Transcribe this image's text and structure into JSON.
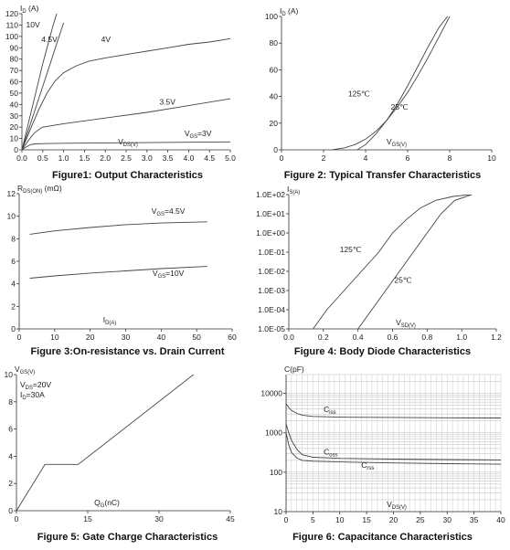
{
  "chart_data": [
    {
      "type": "line",
      "title": "Figure1: Output Characteristics",
      "ylabel": "ID (A)",
      "xlabel": "VDS(V)",
      "xlim": [
        0,
        5
      ],
      "ylim": [
        0,
        120
      ],
      "xticks": [
        "0.0",
        "0.5",
        "1.0",
        "1.5",
        "2.0",
        "2.5",
        "3.0",
        "3.5",
        "4.0",
        "4.5",
        "5.0"
      ],
      "yticks": [
        "0",
        "10",
        "20",
        "30",
        "40",
        "50",
        "60",
        "70",
        "80",
        "90",
        "100",
        "110",
        "120"
      ],
      "grid": false,
      "series": [
        {
          "name": "10V",
          "x": [
            0,
            0.25,
            0.5,
            0.75,
            1.0
          ],
          "y": [
            0,
            38,
            76,
            110,
            140
          ]
        },
        {
          "name": "4.5V",
          "x": [
            0,
            0.25,
            0.5,
            0.75,
            1.0
          ],
          "y": [
            0,
            28,
            56,
            84,
            112
          ]
        },
        {
          "name": "4V",
          "x": [
            0,
            0.2,
            0.4,
            0.6,
            0.8,
            1.0,
            1.3,
            1.6,
            2.0,
            2.5,
            3.0,
            3.5,
            4.0,
            4.5,
            5.0
          ],
          "y": [
            0,
            18,
            35,
            50,
            61,
            68,
            74,
            78,
            81,
            84,
            87,
            90,
            93,
            95,
            98
          ]
        },
        {
          "name": "3.5V",
          "x": [
            0,
            0.15,
            0.3,
            0.45,
            0.5,
            1.0,
            2.0,
            3.0,
            4.0,
            5.0
          ],
          "y": [
            0,
            8,
            15,
            19,
            20,
            23,
            28,
            33,
            39,
            45
          ]
        },
        {
          "name": "VGS=3V",
          "x": [
            0,
            0.1,
            0.2,
            0.3,
            0.5,
            1.0,
            2.0,
            3.0,
            4.0,
            5.0
          ],
          "y": [
            0,
            2.5,
            4.5,
            5.2,
            5.5,
            5.8,
            6.1,
            6.4,
            6.7,
            7
          ]
        }
      ]
    },
    {
      "type": "line",
      "title": "Figure 2: Typical Transfer Characteristics",
      "ylabel": "ID (A)",
      "xlabel": "VGS(V)",
      "xlim": [
        0,
        10
      ],
      "ylim": [
        0,
        100
      ],
      "xticks": [
        "0",
        "2",
        "4",
        "6",
        "8",
        "10"
      ],
      "yticks": [
        "0",
        "20",
        "40",
        "60",
        "80",
        "100"
      ],
      "grid": false,
      "series": [
        {
          "name": "125℃",
          "x": [
            2.4,
            3.0,
            3.5,
            4.0,
            4.5,
            5.0,
            5.5,
            6.0,
            6.5,
            7.0,
            7.5,
            8.0
          ],
          "y": [
            0,
            1.5,
            4,
            8,
            14,
            22,
            32,
            43,
            56,
            70,
            85,
            100
          ]
        },
        {
          "name": "25℃",
          "x": [
            3.6,
            4.0,
            4.5,
            5.0,
            5.5,
            6.0,
            6.5,
            7.0,
            7.5,
            7.9
          ],
          "y": [
            0,
            4,
            12,
            22,
            34,
            48,
            63,
            78,
            92,
            100
          ]
        }
      ]
    },
    {
      "type": "line",
      "title": "Figure 3:On-resistance vs. Drain Current",
      "ylabel": "RDS(ON) (mΩ)",
      "xlabel": "ID(A)",
      "xlim": [
        0,
        60
      ],
      "ylim": [
        0,
        12
      ],
      "xticks": [
        "0",
        "10",
        "20",
        "30",
        "40",
        "50",
        "60"
      ],
      "yticks": [
        "0",
        "2",
        "4",
        "6",
        "8",
        "10",
        "12"
      ],
      "grid": false,
      "series": [
        {
          "name": "VGS=4.5V",
          "x": [
            3,
            10,
            20,
            30,
            40,
            53
          ],
          "y": [
            8.4,
            8.7,
            9.0,
            9.25,
            9.4,
            9.5
          ]
        },
        {
          "name": "VGS=10V",
          "x": [
            3,
            10,
            20,
            30,
            40,
            53
          ],
          "y": [
            4.5,
            4.7,
            4.95,
            5.15,
            5.35,
            5.55
          ]
        }
      ]
    },
    {
      "type": "line",
      "title": "Figure 4: Body Diode Characteristics",
      "ylabel": "IS(A)",
      "xlabel": "VSD(V)",
      "xlim": [
        0,
        1.2
      ],
      "ylim": [
        1e-05,
        100
      ],
      "yscale": "log",
      "xticks": [
        "0.0",
        "0.2",
        "0.4",
        "0.6",
        "0.8",
        "1.0",
        "1.2"
      ],
      "yticks": [
        "1.0E-05",
        "1.0E-04",
        "1.0E-03",
        "1.0E-02",
        "1.0E-01",
        "1.0E+00",
        "1.0E+01",
        "1.0E+02"
      ],
      "grid": false,
      "series": [
        {
          "name": "125℃",
          "x": [
            0.14,
            0.22,
            0.32,
            0.42,
            0.52,
            0.6,
            0.68,
            0.76,
            0.85,
            0.95,
            1.05
          ],
          "y": [
            1e-05,
            0.0001,
            0.001,
            0.01,
            0.1,
            1,
            5,
            20,
            50,
            80,
            100
          ]
        },
        {
          "name": "25℃",
          "x": [
            0.4,
            0.48,
            0.56,
            0.64,
            0.72,
            0.8,
            0.88,
            0.96,
            1.06
          ],
          "y": [
            1e-05,
            0.0001,
            0.001,
            0.01,
            0.1,
            1,
            10,
            50,
            100
          ]
        }
      ]
    },
    {
      "type": "line",
      "title": "Figure 5: Gate Charge Characteristics",
      "ylabel": "VGS(V)",
      "xlabel": "QG(nC)",
      "xlim": [
        0,
        45
      ],
      "ylim": [
        0,
        10
      ],
      "xticks": [
        "0",
        "15",
        "30",
        "45"
      ],
      "yticks": [
        "0",
        "2",
        "4",
        "6",
        "8",
        "10"
      ],
      "grid": false,
      "annotations": [
        "VDS=20V",
        "ID=30A"
      ],
      "series": [
        {
          "name": "",
          "x": [
            0,
            6,
            13,
            38
          ],
          "y": [
            0,
            3.4,
            3.4,
            10.2
          ]
        }
      ]
    },
    {
      "type": "line",
      "title": "Figure 6: Capacitance Characteristics",
      "ylabel": "C(pF)",
      "xlabel": "VDS(V)",
      "xlim": [
        0,
        40
      ],
      "ylim": [
        10,
        30000
      ],
      "yscale": "log",
      "xticks": [
        "0",
        "5",
        "10",
        "15",
        "20",
        "25",
        "30",
        "35",
        "40"
      ],
      "yticks": [
        "10",
        "100",
        "1000",
        "10000"
      ],
      "grid": true,
      "series": [
        {
          "name": "Ciss",
          "x": [
            0,
            0.5,
            1,
            2,
            3,
            5,
            10,
            20,
            30,
            40
          ],
          "y": [
            5500,
            4400,
            3700,
            3100,
            2800,
            2600,
            2500,
            2450,
            2400,
            2380
          ]
        },
        {
          "name": "Coss",
          "x": [
            0,
            0.5,
            1,
            2,
            3,
            5,
            10,
            20,
            30,
            40
          ],
          "y": [
            1700,
            1000,
            650,
            380,
            280,
            240,
            225,
            215,
            210,
            205
          ]
        },
        {
          "name": "Crss",
          "x": [
            0,
            0.5,
            1,
            2,
            3,
            5,
            10,
            20,
            30,
            40
          ],
          "y": [
            1000,
            500,
            320,
            230,
            200,
            190,
            182,
            172,
            165,
            160
          ]
        }
      ]
    }
  ]
}
